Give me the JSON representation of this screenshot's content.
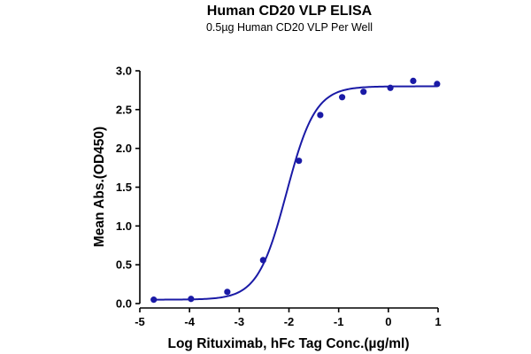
{
  "chart_data": {
    "type": "scatter",
    "title": "Human CD20 VLP ELISA",
    "subtitle": "0.5µg Human CD20 VLP Per Well",
    "xlabel": "Log Rituximab, hFc Tag Conc.(µg/ml)",
    "ylabel": "Mean Abs.(OD450)",
    "xlim": [
      -5,
      1
    ],
    "ylim": [
      0,
      3.0
    ],
    "xticks": [
      "-5",
      "-4",
      "-3",
      "-2",
      "-1",
      "0",
      "1"
    ],
    "yticks": [
      "0.0",
      "0.5",
      "1.0",
      "1.5",
      "2.0",
      "2.5",
      "3.0"
    ],
    "grid": false,
    "legend": "none",
    "series": [
      {
        "x": [
          -4.72,
          -3.97,
          -3.24,
          -2.52,
          -1.8,
          -1.37,
          -0.93,
          -0.5,
          0.04,
          0.5,
          0.98
        ],
        "y": [
          0.05,
          0.06,
          0.15,
          0.56,
          1.84,
          2.43,
          2.66,
          2.73,
          2.78,
          2.87,
          2.83
        ],
        "fit": {
          "model": "4PL",
          "bottom": 0.05,
          "top": 2.8,
          "log_ec50": -2.05,
          "hill": 1.5
        }
      }
    ],
    "colors": {
      "series": "#1a1aa6",
      "axis": "#000000"
    }
  }
}
